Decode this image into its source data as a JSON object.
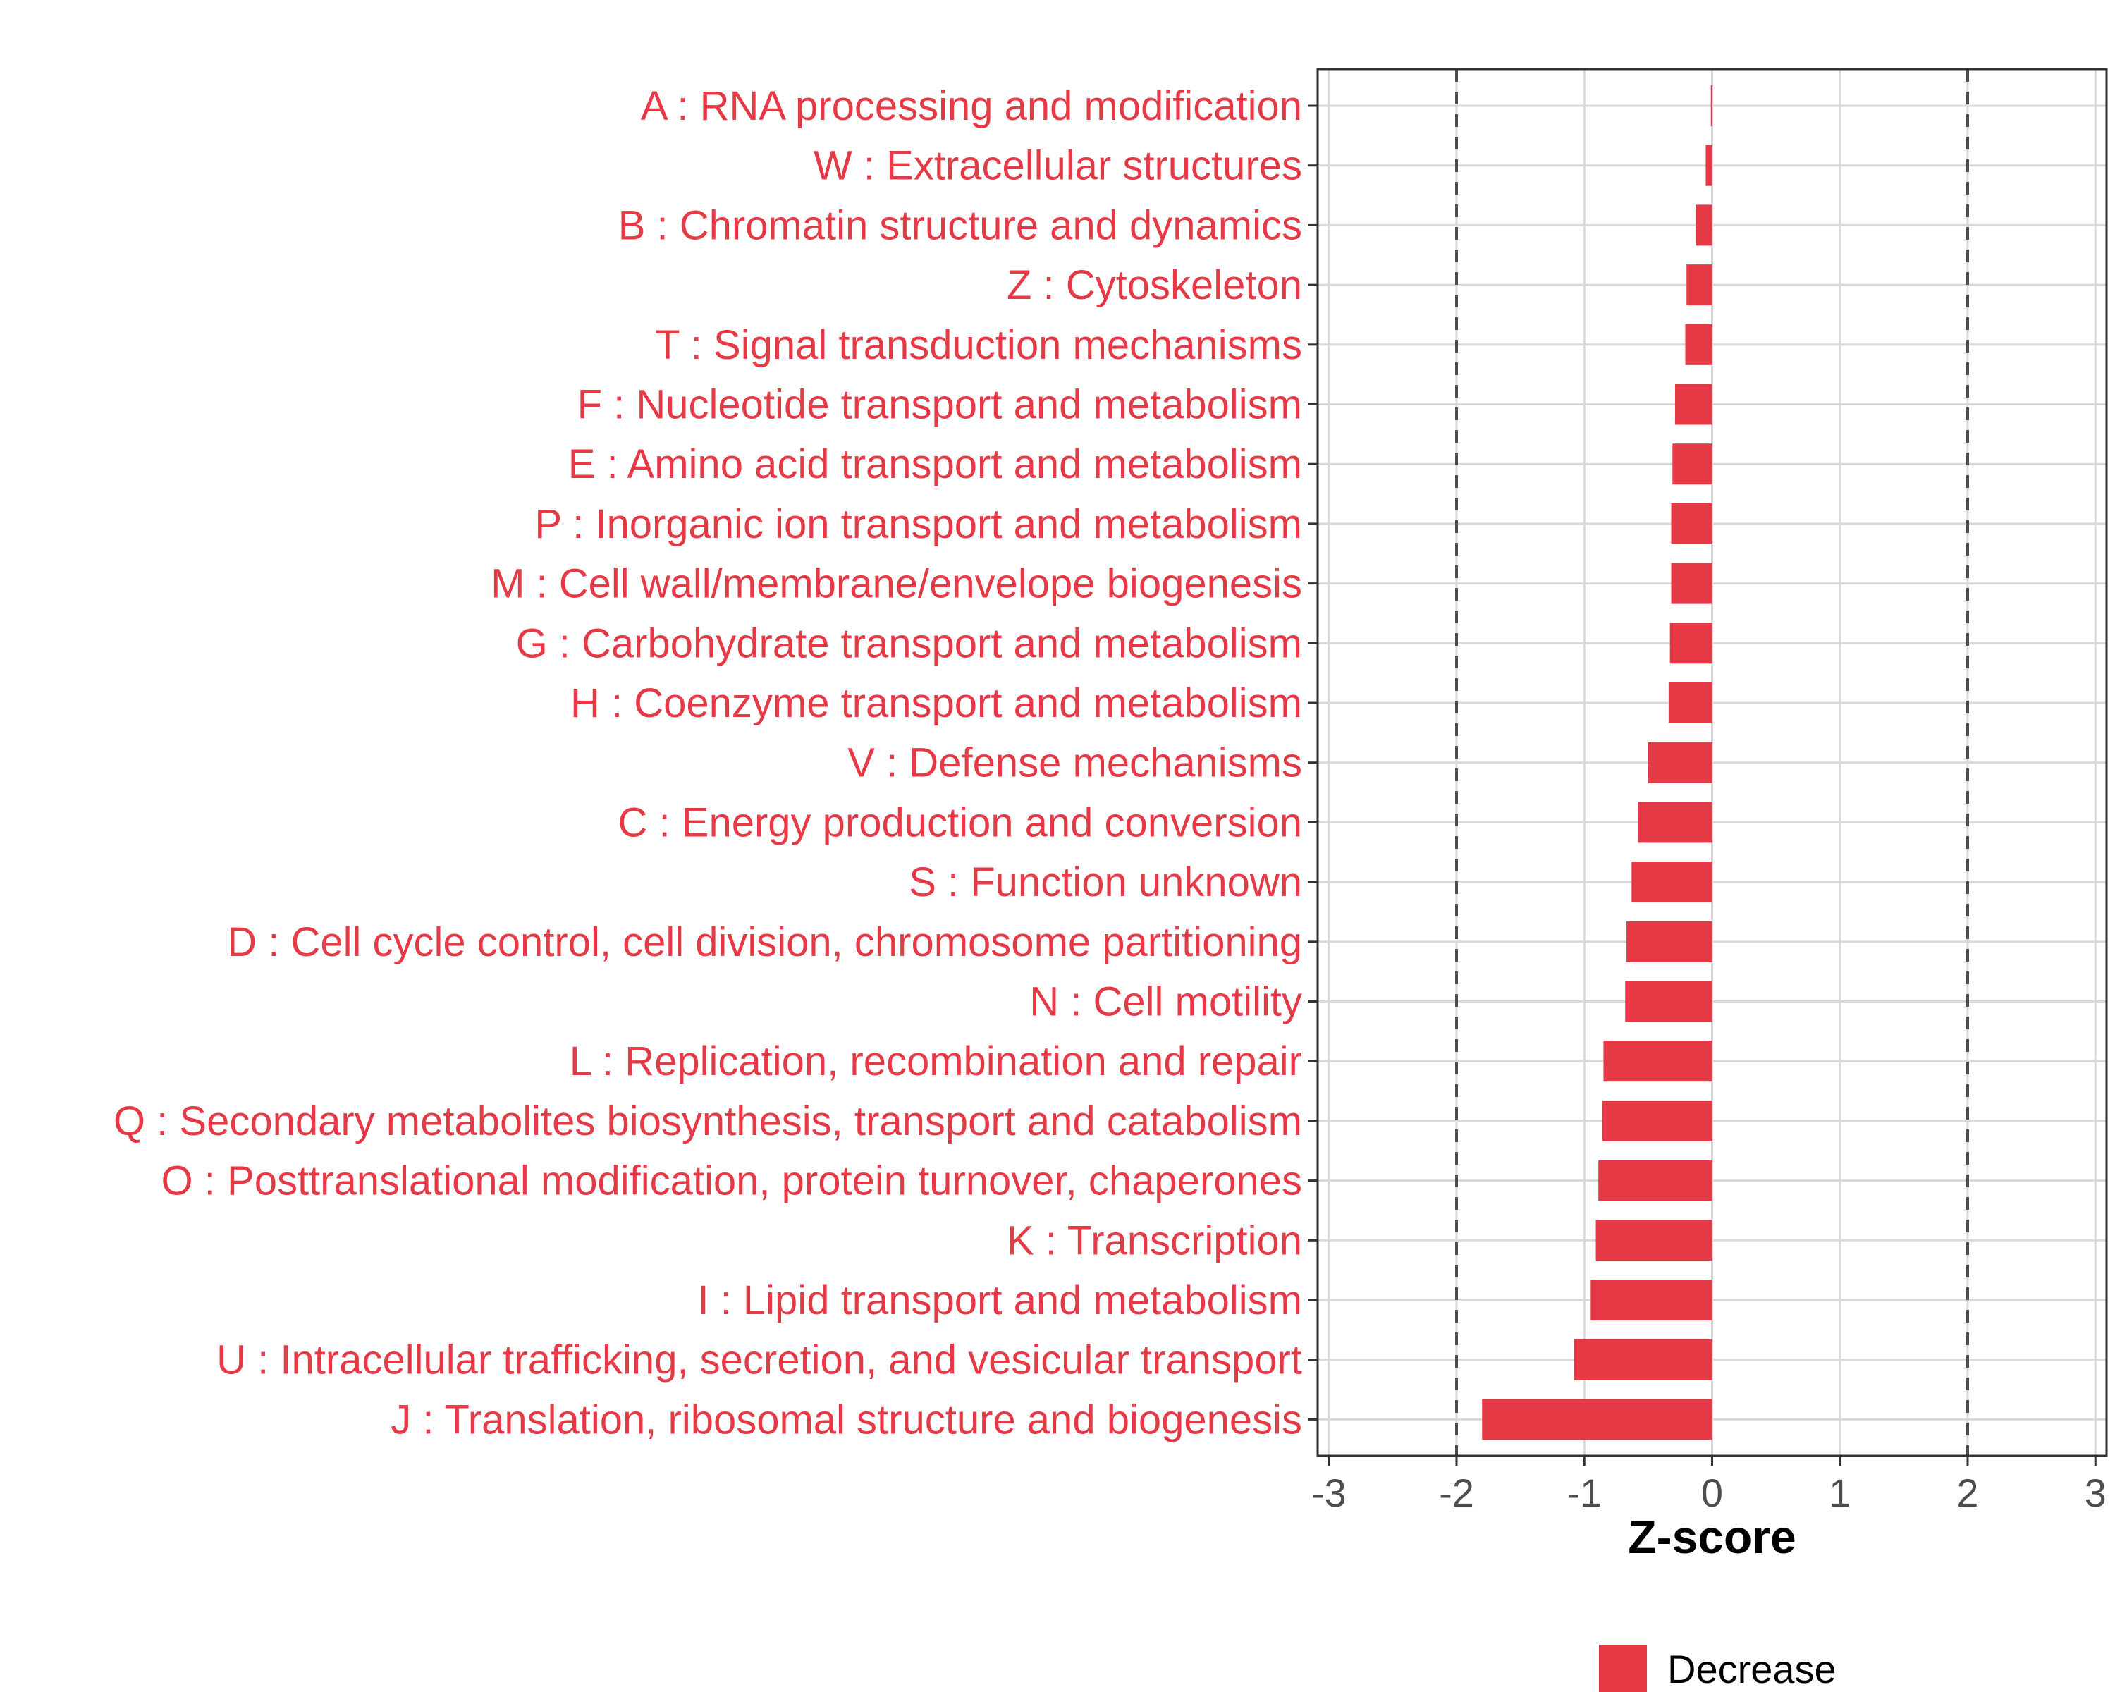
{
  "chart_data": {
    "type": "bar",
    "orientation": "horizontal",
    "categories": [
      "A : RNA processing and modification",
      "W : Extracellular structures",
      "B : Chromatin structure and dynamics",
      "Z : Cytoskeleton",
      "T : Signal transduction mechanisms",
      "F : Nucleotide transport and metabolism",
      "E : Amino acid transport and metabolism",
      "P : Inorganic ion transport and metabolism",
      "M : Cell wall/membrane/envelope biogenesis",
      "G : Carbohydrate transport and metabolism",
      "H : Coenzyme transport and metabolism",
      "V : Defense mechanisms",
      "C : Energy production and conversion",
      "S : Function unknown",
      "D : Cell cycle control, cell division, chromosome partitioning",
      "N : Cell motility",
      "L : Replication, recombination and repair",
      "Q : Secondary metabolites biosynthesis, transport and catabolism",
      "O : Posttranslational modification, protein turnover, chaperones",
      "K : Transcription",
      "I : Lipid transport and metabolism",
      "U : Intracellular trafficking, secretion, and vesicular transport",
      "J : Translation, ribosomal structure and biogenesis"
    ],
    "values": [
      -0.01,
      -0.05,
      -0.13,
      -0.2,
      -0.21,
      -0.29,
      -0.31,
      -0.32,
      -0.32,
      -0.33,
      -0.34,
      -0.5,
      -0.58,
      -0.63,
      -0.67,
      -0.68,
      -0.85,
      -0.86,
      -0.89,
      -0.91,
      -0.95,
      -1.08,
      -1.8
    ],
    "series": [
      {
        "name": "Decrease",
        "color": "#e63946"
      }
    ],
    "xlabel": "Z-score",
    "ylabel": "",
    "xlim": [
      -3.1,
      3.1
    ],
    "xticks": [
      "-3",
      "-2",
      "-1",
      "0",
      "1",
      "2",
      "3"
    ],
    "thresholds": [
      -2,
      2
    ],
    "grid": true,
    "legend": {
      "position": "bottom",
      "entries": [
        "Decrease"
      ]
    },
    "colors": {
      "bar": "#e63946",
      "label": "#e63946",
      "grid": "#d9d9d9",
      "threshold": "#4d4d4d",
      "frame": "#333333"
    }
  }
}
